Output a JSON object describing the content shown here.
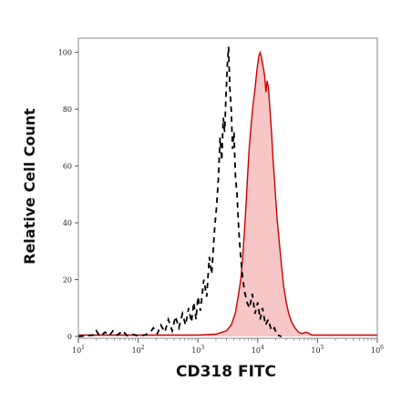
{
  "chart_data": {
    "type": "area",
    "title": "",
    "xlabel": "CD318 FITC",
    "ylabel": "Relative Cell Count",
    "xscale": "log",
    "xlim": [
      10,
      1000000
    ],
    "ylim": [
      0,
      105
    ],
    "grid": false,
    "legend": "none",
    "x_ticks": [
      {
        "value": 10,
        "base": "10",
        "exp": "1"
      },
      {
        "value": 100,
        "base": "10",
        "exp": "2"
      },
      {
        "value": 1000,
        "base": "10",
        "exp": "3"
      },
      {
        "value": 10000,
        "base": "10",
        "exp": "4"
      },
      {
        "value": 100000,
        "base": "10",
        "exp": "5"
      },
      {
        "value": 1000000,
        "base": "10",
        "exp": "6"
      }
    ],
    "y_ticks": [
      {
        "value": 0,
        "label": "0"
      },
      {
        "value": 20,
        "label": "20"
      },
      {
        "value": 40,
        "label": "40"
      },
      {
        "value": 60,
        "label": "60"
      },
      {
        "value": 80,
        "label": "80"
      },
      {
        "value": 100,
        "label": "100"
      }
    ],
    "series": [
      {
        "style": "dashed",
        "color": "#000000",
        "fill": "none",
        "points": [
          [
            10,
            0
          ],
          [
            18,
            0.5
          ],
          [
            20,
            2
          ],
          [
            23,
            0
          ],
          [
            28,
            1.5
          ],
          [
            33,
            0.3
          ],
          [
            38,
            2
          ],
          [
            45,
            0.5
          ],
          [
            55,
            2
          ],
          [
            65,
            0.3
          ],
          [
            80,
            0.8
          ],
          [
            100,
            0.2
          ],
          [
            130,
            0.5
          ],
          [
            160,
            1.5
          ],
          [
            180,
            3
          ],
          [
            210,
            1
          ],
          [
            240,
            4
          ],
          [
            280,
            1.5
          ],
          [
            320,
            6
          ],
          [
            370,
            2
          ],
          [
            420,
            7
          ],
          [
            480,
            3
          ],
          [
            550,
            8
          ],
          [
            620,
            4
          ],
          [
            700,
            10
          ],
          [
            780,
            5
          ],
          [
            850,
            12
          ],
          [
            930,
            6
          ],
          [
            1000,
            14
          ],
          [
            1100,
            9
          ],
          [
            1250,
            20
          ],
          [
            1400,
            14
          ],
          [
            1550,
            28
          ],
          [
            1700,
            22
          ],
          [
            1900,
            38
          ],
          [
            2050,
            46
          ],
          [
            2200,
            56
          ],
          [
            2350,
            70
          ],
          [
            2500,
            62
          ],
          [
            2650,
            77
          ],
          [
            2800,
            72
          ],
          [
            2950,
            85
          ],
          [
            3100,
            95
          ],
          [
            3250,
            102
          ],
          [
            3400,
            88
          ],
          [
            3600,
            80
          ],
          [
            3800,
            66
          ],
          [
            4000,
            72
          ],
          [
            4250,
            56
          ],
          [
            4500,
            50
          ],
          [
            4800,
            38
          ],
          [
            5100,
            30
          ],
          [
            5500,
            22
          ],
          [
            6000,
            16
          ],
          [
            6600,
            12
          ],
          [
            7300,
            10
          ],
          [
            8100,
            15
          ],
          [
            9000,
            8
          ],
          [
            10000,
            12
          ],
          [
            11000,
            6
          ],
          [
            12000,
            10
          ],
          [
            13500,
            4
          ],
          [
            15000,
            6
          ],
          [
            17000,
            2
          ],
          [
            19000,
            3
          ],
          [
            21000,
            0.5
          ],
          [
            25000,
            0
          ]
        ]
      },
      {
        "style": "solid",
        "color": "#cc0000",
        "fill": "#f7c6c6",
        "points": [
          [
            10,
            0.5
          ],
          [
            50,
            0.5
          ],
          [
            200,
            0.5
          ],
          [
            1000,
            0.5
          ],
          [
            2000,
            0.8
          ],
          [
            3000,
            2
          ],
          [
            3600,
            4
          ],
          [
            4200,
            8
          ],
          [
            4700,
            14
          ],
          [
            5200,
            20
          ],
          [
            5700,
            30
          ],
          [
            6200,
            42
          ],
          [
            6700,
            55
          ],
          [
            7200,
            66
          ],
          [
            7800,
            75
          ],
          [
            8400,
            82
          ],
          [
            9000,
            87
          ],
          [
            9500,
            92
          ],
          [
            10000,
            96
          ],
          [
            10500,
            99
          ],
          [
            11000,
            100
          ],
          [
            11600,
            98
          ],
          [
            12300,
            95
          ],
          [
            13000,
            92
          ],
          [
            13700,
            86
          ],
          [
            14300,
            90
          ],
          [
            15000,
            88
          ],
          [
            16000,
            80
          ],
          [
            17000,
            72
          ],
          [
            18000,
            63
          ],
          [
            19500,
            52
          ],
          [
            21000,
            42
          ],
          [
            23000,
            33
          ],
          [
            25000,
            25
          ],
          [
            27000,
            18
          ],
          [
            30000,
            12
          ],
          [
            33000,
            8
          ],
          [
            37000,
            5
          ],
          [
            42000,
            3
          ],
          [
            48000,
            1.5
          ],
          [
            55000,
            1
          ],
          [
            65000,
            1.5
          ],
          [
            80000,
            0.5
          ],
          [
            100000,
            0.5
          ],
          [
            200000,
            0.5
          ],
          [
            500000,
            0.5
          ],
          [
            1000000,
            0.5
          ]
        ]
      }
    ]
  }
}
